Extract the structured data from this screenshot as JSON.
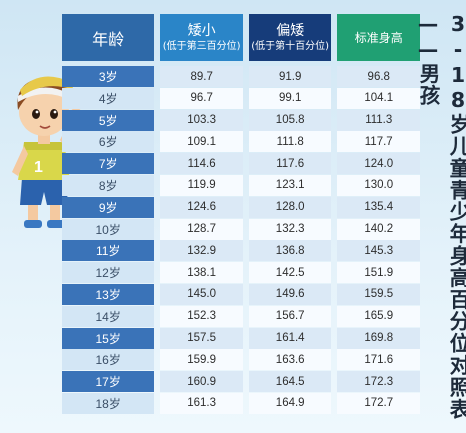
{
  "title": "3-18岁儿童青少年身高百分位对照表——男孩",
  "headers": {
    "age": "年龄",
    "short_main": "矮小",
    "short_sub": "(低于第三百分位)",
    "lowish_main": "偏矮",
    "lowish_sub": "(低于第十百分位)",
    "standard": "标准身高"
  },
  "rows": [
    {
      "age": "3岁",
      "short": "89.7",
      "lowish": "91.9",
      "standard": "96.8"
    },
    {
      "age": "4岁",
      "short": "96.7",
      "lowish": "99.1",
      "standard": "104.1"
    },
    {
      "age": "5岁",
      "short": "103.3",
      "lowish": "105.8",
      "standard": "111.3"
    },
    {
      "age": "6岁",
      "short": "109.1",
      "lowish": "111.8",
      "standard": "117.7"
    },
    {
      "age": "7岁",
      "short": "114.6",
      "lowish": "117.6",
      "standard": "124.0"
    },
    {
      "age": "8岁",
      "short": "119.9",
      "lowish": "123.1",
      "standard": "130.0"
    },
    {
      "age": "9岁",
      "short": "124.6",
      "lowish": "128.0",
      "standard": "135.4"
    },
    {
      "age": "10岁",
      "short": "128.7",
      "lowish": "132.3",
      "standard": "140.2"
    },
    {
      "age": "11岁",
      "short": "132.9",
      "lowish": "136.8",
      "standard": "145.3"
    },
    {
      "age": "12岁",
      "short": "138.1",
      "lowish": "142.5",
      "standard": "151.9"
    },
    {
      "age": "13岁",
      "short": "145.0",
      "lowish": "149.6",
      "standard": "159.5"
    },
    {
      "age": "14岁",
      "short": "152.3",
      "lowish": "156.7",
      "standard": "165.9"
    },
    {
      "age": "15岁",
      "short": "157.5",
      "lowish": "161.4",
      "standard": "169.8"
    },
    {
      "age": "16岁",
      "short": "159.9",
      "lowish": "163.6",
      "standard": "171.6"
    },
    {
      "age": "17岁",
      "short": "160.9",
      "lowish": "164.5",
      "standard": "172.3"
    },
    {
      "age": "18岁",
      "short": "161.3",
      "lowish": "164.9",
      "standard": "172.7"
    }
  ],
  "colors": {
    "age_header": "#2e69a8",
    "short_header": "#2a85c8",
    "lowish_header": "#163c7a",
    "standard_header": "#20a073",
    "background": "#d9ecf7"
  },
  "illustration": {
    "jersey_number": "1"
  }
}
